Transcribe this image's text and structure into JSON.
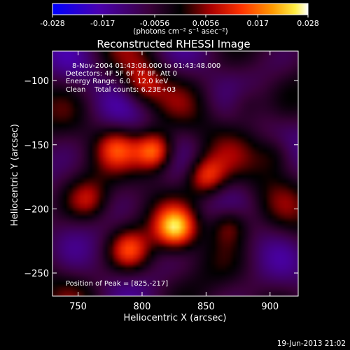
{
  "colorbar": {
    "ticks": [
      "-0.028",
      "-0.017",
      "-0.0056",
      "0.0056",
      "0.017",
      "0.028"
    ],
    "tick_values": [
      -0.028,
      -0.017,
      -0.0056,
      0.0056,
      0.017,
      0.028
    ],
    "unit": "(photons cm⁻² s⁻¹ asec⁻²)",
    "colors": [
      "#0000ff",
      "#4a00b0",
      "#3a003a",
      "#000000",
      "#aa0000",
      "#ff3300",
      "#ff9900",
      "#ffee44",
      "#ffffff"
    ]
  },
  "chart_data": {
    "type": "heatmap",
    "title": "Reconstructed RHESSI Image",
    "xlabel": "Heliocentric X (arcsec)",
    "ylabel": "Heliocentric Y (arcsec)",
    "xlim": [
      730,
      922
    ],
    "ylim": [
      -268,
      -77
    ],
    "xticks": [
      750,
      800,
      850,
      900
    ],
    "yticks": [
      -100,
      -150,
      -200,
      -250
    ],
    "peak": [
      825,
      -217
    ],
    "sources": [
      {
        "x": 810,
        "y": -155,
        "amp": 0.028
      },
      {
        "x": 826,
        "y": -215,
        "amp": 0.028
      },
      {
        "x": 850,
        "y": -175,
        "amp": 0.02
      },
      {
        "x": 780,
        "y": -152,
        "amp": 0.014
      },
      {
        "x": 790,
        "y": -232,
        "amp": 0.016
      },
      {
        "x": 868,
        "y": -212,
        "amp": 0.015
      },
      {
        "x": 758,
        "y": -193,
        "amp": 0.012
      },
      {
        "x": 800,
        "y": -103,
        "amp": 0.013
      },
      {
        "x": 905,
        "y": -158,
        "amp": 0.011
      },
      {
        "x": 880,
        "y": -118,
        "amp": 0.009
      }
    ],
    "annotations": [
      "8-Nov-2004 01:43:08.000 to 01:43:48.000",
      "Detectors: 4F 5F 6F 7F 8F, Att 0",
      "Energy Range: 6.0 - 12.0 keV",
      "Clean    Total counts: 6.23E+03"
    ],
    "peak_label": "Position of Peak = [825,-217]"
  },
  "footer": {
    "timestamp": "19-Jun-2013 21:02"
  }
}
